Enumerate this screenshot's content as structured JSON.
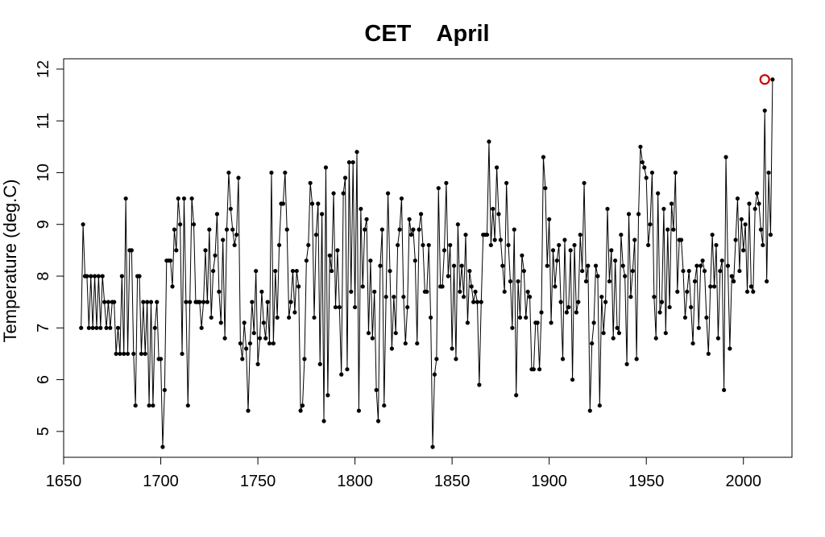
{
  "chart_data": {
    "type": "line",
    "title": "CET    April",
    "xlabel": "",
    "ylabel": "Temperature (deg.C)",
    "xlim": [
      1650,
      2025
    ],
    "ylim": [
      4.5,
      12.2
    ],
    "x_ticks": [
      1650,
      1700,
      1750,
      1800,
      1850,
      1900,
      1950,
      2000
    ],
    "y_ticks": [
      5,
      6,
      7,
      8,
      9,
      10,
      11,
      12
    ],
    "grid": false,
    "legend": "none",
    "x_start": 1659,
    "series": [
      {
        "color": "#000000",
        "marker": "filled-circle",
        "values": [
          7.0,
          9.0,
          8.0,
          8.0,
          7.0,
          8.0,
          7.0,
          8.0,
          7.0,
          8.0,
          7.0,
          8.0,
          7.5,
          7.0,
          7.5,
          7.0,
          7.5,
          7.5,
          6.5,
          7.0,
          6.5,
          8.0,
          6.5,
          9.5,
          6.5,
          8.5,
          8.5,
          6.5,
          5.5,
          8.0,
          8.0,
          6.5,
          7.5,
          6.5,
          7.5,
          5.5,
          7.5,
          5.5,
          7.0,
          7.5,
          6.4,
          6.4,
          4.7,
          5.8,
          8.3,
          8.3,
          8.3,
          7.8,
          8.9,
          8.5,
          9.5,
          9.0,
          6.5,
          9.5,
          7.5,
          5.5,
          7.5,
          9.5,
          9.0,
          7.5,
          7.5,
          7.5,
          7.0,
          7.5,
          8.5,
          7.5,
          8.9,
          7.2,
          8.1,
          8.4,
          9.2,
          7.7,
          7.1,
          8.7,
          6.8,
          8.9,
          10.0,
          9.3,
          8.9,
          8.6,
          8.8,
          9.9,
          6.7,
          6.4,
          7.1,
          6.6,
          5.4,
          6.7,
          7.5,
          6.9,
          8.1,
          6.3,
          6.8,
          7.7,
          7.1,
          6.8,
          7.5,
          6.7,
          10.0,
          6.7,
          8.1,
          7.2,
          8.6,
          9.4,
          9.4,
          10.0,
          8.9,
          7.2,
          7.5,
          8.1,
          7.3,
          8.1,
          7.8,
          5.4,
          5.5,
          6.4,
          8.3,
          8.6,
          9.8,
          9.4,
          7.2,
          8.8,
          9.4,
          6.3,
          9.2,
          5.2,
          10.1,
          5.7,
          8.4,
          8.1,
          9.6,
          7.4,
          8.5,
          7.4,
          6.1,
          9.6,
          9.9,
          6.2,
          10.2,
          7.7,
          10.2,
          7.4,
          10.4,
          5.4,
          9.3,
          7.8,
          8.9,
          9.1,
          6.9,
          8.3,
          6.8,
          7.7,
          5.8,
          5.2,
          8.2,
          8.9,
          5.5,
          7.6,
          9.6,
          8.1,
          6.6,
          7.6,
          6.9,
          8.6,
          8.9,
          9.5,
          7.6,
          6.7,
          7.4,
          9.1,
          8.8,
          8.9,
          8.3,
          6.7,
          8.9,
          9.2,
          8.6,
          7.7,
          7.7,
          8.6,
          7.2,
          4.7,
          6.1,
          6.4,
          9.7,
          7.8,
          7.8,
          8.5,
          9.8,
          8.0,
          8.6,
          6.6,
          8.2,
          6.4,
          9.0,
          7.7,
          8.2,
          7.6,
          8.8,
          7.1,
          8.1,
          7.8,
          7.5,
          7.7,
          7.5,
          5.9,
          7.5,
          8.8,
          8.8,
          8.8,
          10.6,
          8.6,
          9.3,
          8.7,
          10.1,
          9.2,
          8.7,
          8.2,
          7.7,
          9.8,
          8.6,
          7.9,
          7.0,
          8.9,
          5.7,
          7.9,
          7.2,
          8.4,
          8.1,
          7.2,
          7.7,
          7.6,
          6.2,
          6.2,
          7.1,
          7.1,
          6.2,
          7.3,
          10.3,
          9.7,
          8.2,
          9.1,
          7.1,
          8.5,
          7.8,
          8.3,
          8.6,
          7.5,
          6.4,
          8.7,
          7.3,
          7.4,
          8.5,
          6.0,
          8.6,
          7.3,
          7.5,
          8.8,
          8.1,
          9.8,
          7.9,
          8.2,
          5.4,
          6.7,
          7.1,
          8.2,
          8.0,
          5.5,
          7.6,
          6.9,
          7.5,
          9.3,
          7.9,
          8.5,
          6.8,
          8.3,
          7.0,
          6.9,
          8.8,
          8.2,
          8.0,
          6.3,
          9.2,
          7.6,
          8.1,
          8.7,
          6.4,
          9.2,
          10.5,
          10.2,
          10.1,
          9.9,
          8.6,
          9.0,
          10.0,
          7.6,
          6.8,
          9.6,
          7.3,
          7.5,
          9.3,
          6.9,
          8.9,
          7.4,
          9.4,
          8.9,
          10.0,
          7.7,
          8.7,
          8.7,
          8.1,
          7.2,
          7.7,
          8.1,
          7.4,
          6.7,
          7.9,
          8.2,
          7.0,
          8.2,
          8.3,
          8.1,
          7.2,
          6.5,
          7.8,
          8.8,
          7.8,
          8.6,
          6.8,
          8.1,
          8.3,
          5.8,
          10.3,
          8.2,
          6.6,
          8.0,
          7.9,
          8.7,
          9.5,
          8.1,
          9.1,
          8.5,
          9.0,
          7.7,
          9.4,
          7.8,
          7.7,
          9.3,
          9.6,
          9.4,
          8.9,
          8.6,
          11.2,
          7.9,
          10.0,
          8.8,
          11.8
        ]
      }
    ],
    "highlight": {
      "x": 2011,
      "y": 11.8,
      "color": "#cc0000"
    }
  }
}
